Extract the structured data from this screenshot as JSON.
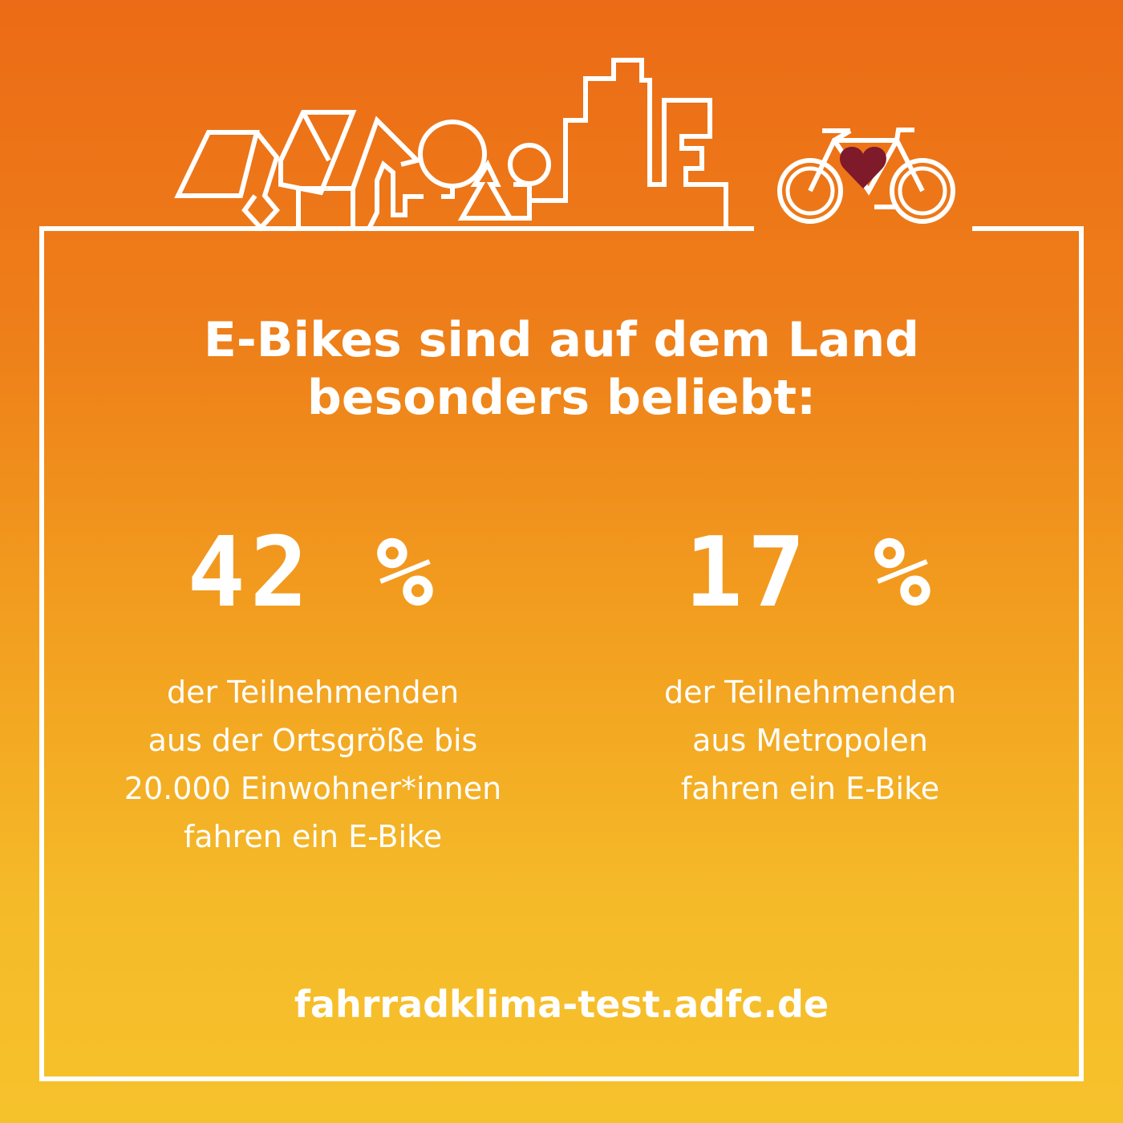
{
  "headline": {
    "line1": "E-Bikes sind auf dem Land",
    "line2": "besonders beliebt:"
  },
  "stats": [
    {
      "value": "42 %",
      "lines": [
        "der Teilnehmenden",
        "aus der Ortsgröße bis",
        "20.000 Einwohner*innen",
        "fahren ein E-Bike"
      ]
    },
    {
      "value": "17 %",
      "lines": [
        "der Teilnehmenden",
        "aus Metropolen",
        "fahren ein E-Bike"
      ]
    }
  ],
  "footer": {
    "url": "fahrradklima-test.adfc.de"
  },
  "colors": {
    "gradient_top": "#ec6b16",
    "gradient_bottom": "#f6c22c",
    "heart": "#7f1a2a",
    "line": "#ffffff"
  },
  "icons": [
    "skyline-outline",
    "bicycle-icon",
    "heart-icon"
  ]
}
